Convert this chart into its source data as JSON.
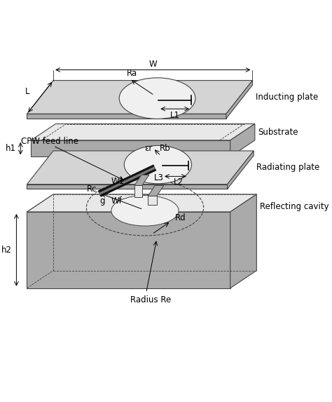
{
  "background": "#ffffff",
  "plate_color": "#d4d4d4",
  "plate_edge": "#444444",
  "plate_dark": "#aaaaaa",
  "plate_light": "#e8e8e8",
  "slot_color": "#f0f0f0",
  "line_color": "#000000",
  "labels": {
    "W": "W",
    "L": "L",
    "Ra": "Ra",
    "L1": "L1",
    "h1": "h1",
    "er": "εr",
    "Rb": "Rb",
    "L2": "L2",
    "L3": "L3",
    "W1": "W1",
    "Wf": "Wf",
    "g": "g",
    "Rc": "Rc",
    "Rd": "Rd",
    "Re": "Radius Re",
    "h2": "h2",
    "cpw": "CPW feed line",
    "ind": "Inducting plate",
    "sub": "Substrate",
    "rad": "Radiating plate",
    "ref": "Reflecting cavity"
  },
  "fontsize": 8.5,
  "figsize": [
    4.74,
    5.73
  ],
  "dpi": 100
}
